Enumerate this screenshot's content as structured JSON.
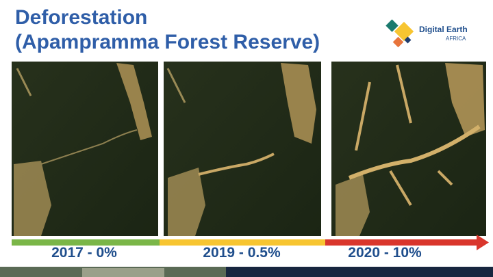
{
  "title": [
    "Deforestation",
    "(Apampramma Forest Reserve)"
  ],
  "logo": {
    "name": "Digital Earth",
    "sub": "AFRICA"
  },
  "panels": [
    {
      "label": "2017 - 0%"
    },
    {
      "label": "2019 - 0.5%"
    },
    {
      "label": "2020 - 10%"
    }
  ]
}
